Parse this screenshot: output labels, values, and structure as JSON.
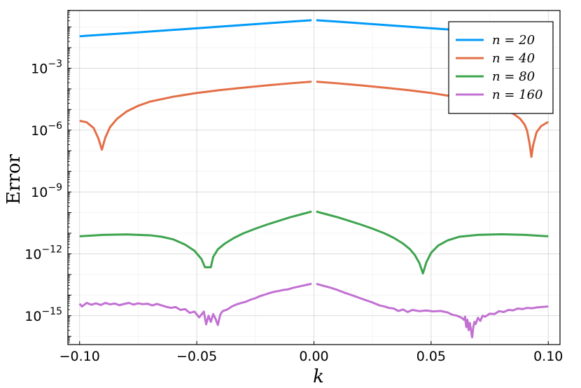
{
  "chart_data": {
    "type": "line",
    "xlabel": "k",
    "ylabel": "Error",
    "xlim": [
      -0.105,
      0.105
    ],
    "ylim_log10": [
      -16.4,
      -0.2
    ],
    "y_scale": "log10",
    "grid": true,
    "legend_position": "top-right",
    "x_ticks": [
      {
        "v": -0.1,
        "label": "−0.10"
      },
      {
        "v": -0.05,
        "label": "−0.05"
      },
      {
        "v": 0.0,
        "label": "0.00"
      },
      {
        "v": 0.05,
        "label": "0.05"
      },
      {
        "v": 0.1,
        "label": "0.10"
      }
    ],
    "y_ticks": [
      {
        "v": -3,
        "base": "10",
        "exp": "−3"
      },
      {
        "v": -6,
        "base": "10",
        "exp": "−6"
      },
      {
        "v": -9,
        "base": "10",
        "exp": "−9"
      },
      {
        "v": -12,
        "base": "10",
        "exp": "−12"
      },
      {
        "v": -15,
        "base": "10",
        "exp": "−15"
      }
    ],
    "series": [
      {
        "name": "n = 20",
        "color": "#009AFA",
        "log10_points": [
          [
            -0.1,
            -1.45
          ],
          [
            -0.09,
            -1.37
          ],
          [
            -0.08,
            -1.3
          ],
          [
            -0.07,
            -1.22
          ],
          [
            -0.06,
            -1.14
          ],
          [
            -0.05,
            -1.06
          ],
          [
            -0.04,
            -0.98
          ],
          [
            -0.03,
            -0.9
          ],
          [
            -0.02,
            -0.82
          ],
          [
            -0.01,
            -0.74
          ],
          [
            -0.001,
            -0.67
          ],
          [
            0.001,
            -0.67
          ],
          [
            0.01,
            -0.74
          ],
          [
            0.02,
            -0.82
          ],
          [
            0.03,
            -0.9
          ],
          [
            0.04,
            -0.98
          ],
          [
            0.05,
            -1.06
          ],
          [
            0.06,
            -1.14
          ],
          [
            0.07,
            -1.22
          ],
          [
            0.08,
            -1.3
          ],
          [
            0.09,
            -1.37
          ],
          [
            0.1,
            -1.45
          ]
        ]
      },
      {
        "name": "n = 40",
        "color": "#E36F47",
        "log10_points": [
          [
            -0.1,
            -5.55
          ],
          [
            -0.097,
            -5.62
          ],
          [
            -0.094,
            -5.9
          ],
          [
            -0.092,
            -6.4
          ],
          [
            -0.0905,
            -6.95
          ],
          [
            -0.089,
            -6.35
          ],
          [
            -0.087,
            -5.85
          ],
          [
            -0.084,
            -5.45
          ],
          [
            -0.08,
            -5.1
          ],
          [
            -0.075,
            -4.82
          ],
          [
            -0.07,
            -4.62
          ],
          [
            -0.06,
            -4.38
          ],
          [
            -0.05,
            -4.2
          ],
          [
            -0.04,
            -4.06
          ],
          [
            -0.03,
            -3.94
          ],
          [
            -0.02,
            -3.83
          ],
          [
            -0.01,
            -3.73
          ],
          [
            -0.001,
            -3.65
          ],
          [
            0.001,
            -3.65
          ],
          [
            0.01,
            -3.73
          ],
          [
            0.02,
            -3.83
          ],
          [
            0.03,
            -3.94
          ],
          [
            0.04,
            -4.06
          ],
          [
            0.05,
            -4.2
          ],
          [
            0.06,
            -4.38
          ],
          [
            0.07,
            -4.62
          ],
          [
            0.08,
            -4.95
          ],
          [
            0.085,
            -5.2
          ],
          [
            0.088,
            -5.45
          ],
          [
            0.09,
            -5.75
          ],
          [
            0.091,
            -6.05
          ],
          [
            0.092,
            -6.65
          ],
          [
            0.0928,
            -7.3
          ],
          [
            0.0935,
            -6.75
          ],
          [
            0.095,
            -6.1
          ],
          [
            0.097,
            -5.8
          ],
          [
            0.1,
            -5.6
          ]
        ]
      },
      {
        "name": "n = 80",
        "color": "#3EA44E",
        "log10_points": [
          [
            -0.1,
            -11.15
          ],
          [
            -0.09,
            -11.08
          ],
          [
            -0.08,
            -11.06
          ],
          [
            -0.07,
            -11.1
          ],
          [
            -0.065,
            -11.17
          ],
          [
            -0.06,
            -11.3
          ],
          [
            -0.055,
            -11.55
          ],
          [
            -0.051,
            -11.85
          ],
          [
            -0.048,
            -12.25
          ],
          [
            -0.0465,
            -12.65
          ],
          [
            -0.044,
            -12.65
          ],
          [
            -0.043,
            -12.15
          ],
          [
            -0.041,
            -11.78
          ],
          [
            -0.038,
            -11.5
          ],
          [
            -0.034,
            -11.22
          ],
          [
            -0.03,
            -11.0
          ],
          [
            -0.025,
            -10.78
          ],
          [
            -0.02,
            -10.58
          ],
          [
            -0.015,
            -10.4
          ],
          [
            -0.01,
            -10.22
          ],
          [
            -0.005,
            -10.07
          ],
          [
            -0.001,
            -9.95
          ],
          [
            0.001,
            -9.95
          ],
          [
            0.005,
            -10.07
          ],
          [
            0.01,
            -10.22
          ],
          [
            0.015,
            -10.4
          ],
          [
            0.02,
            -10.58
          ],
          [
            0.025,
            -10.78
          ],
          [
            0.03,
            -11.0
          ],
          [
            0.034,
            -11.22
          ],
          [
            0.038,
            -11.5
          ],
          [
            0.041,
            -11.78
          ],
          [
            0.043,
            -12.05
          ],
          [
            0.045,
            -12.45
          ],
          [
            0.0465,
            -12.95
          ],
          [
            0.048,
            -12.4
          ],
          [
            0.05,
            -11.95
          ],
          [
            0.053,
            -11.6
          ],
          [
            0.057,
            -11.35
          ],
          [
            0.062,
            -11.17
          ],
          [
            0.07,
            -11.08
          ],
          [
            0.08,
            -11.05
          ],
          [
            0.09,
            -11.08
          ],
          [
            0.1,
            -11.15
          ]
        ]
      },
      {
        "name": "n = 160",
        "color": "#C271D2",
        "log10_points": [
          [
            -0.1,
            -14.42
          ],
          [
            -0.099,
            -14.55
          ],
          [
            -0.097,
            -14.38
          ],
          [
            -0.095,
            -14.47
          ],
          [
            -0.093,
            -14.4
          ],
          [
            -0.091,
            -14.48
          ],
          [
            -0.089,
            -14.38
          ],
          [
            -0.087,
            -14.45
          ],
          [
            -0.085,
            -14.41
          ],
          [
            -0.083,
            -14.49
          ],
          [
            -0.081,
            -14.43
          ],
          [
            -0.079,
            -14.38
          ],
          [
            -0.077,
            -14.46
          ],
          [
            -0.075,
            -14.4
          ],
          [
            -0.073,
            -14.44
          ],
          [
            -0.071,
            -14.42
          ],
          [
            -0.069,
            -14.5
          ],
          [
            -0.067,
            -14.43
          ],
          [
            -0.065,
            -14.5
          ],
          [
            -0.063,
            -14.57
          ],
          [
            -0.061,
            -14.62
          ],
          [
            -0.059,
            -14.58
          ],
          [
            -0.057,
            -14.72
          ],
          [
            -0.055,
            -14.68
          ],
          [
            -0.053,
            -14.86
          ],
          [
            -0.051,
            -14.8
          ],
          [
            -0.049,
            -15.08
          ],
          [
            -0.047,
            -14.8
          ],
          [
            -0.046,
            -15.42
          ],
          [
            -0.045,
            -15.0
          ],
          [
            -0.044,
            -15.3
          ],
          [
            -0.043,
            -14.92
          ],
          [
            -0.042,
            -15.15
          ],
          [
            -0.041,
            -15.45
          ],
          [
            -0.04,
            -14.95
          ],
          [
            -0.039,
            -14.78
          ],
          [
            -0.037,
            -14.7
          ],
          [
            -0.035,
            -14.55
          ],
          [
            -0.033,
            -14.45
          ],
          [
            -0.031,
            -14.38
          ],
          [
            -0.029,
            -14.32
          ],
          [
            -0.027,
            -14.22
          ],
          [
            -0.025,
            -14.15
          ],
          [
            -0.023,
            -14.05
          ],
          [
            -0.021,
            -13.98
          ],
          [
            -0.019,
            -13.9
          ],
          [
            -0.017,
            -13.84
          ],
          [
            -0.015,
            -13.8
          ],
          [
            -0.013,
            -13.75
          ],
          [
            -0.011,
            -13.72
          ],
          [
            -0.009,
            -13.65
          ],
          [
            -0.007,
            -13.6
          ],
          [
            -0.005,
            -13.55
          ],
          [
            -0.003,
            -13.5
          ],
          [
            -0.001,
            -13.45
          ],
          [
            0.001,
            -13.45
          ],
          [
            0.004,
            -13.55
          ],
          [
            0.007,
            -13.64
          ],
          [
            0.01,
            -13.75
          ],
          [
            0.013,
            -13.88
          ],
          [
            0.016,
            -14.0
          ],
          [
            0.019,
            -14.12
          ],
          [
            0.022,
            -14.24
          ],
          [
            0.025,
            -14.36
          ],
          [
            0.028,
            -14.5
          ],
          [
            0.03,
            -14.55
          ],
          [
            0.032,
            -14.62
          ],
          [
            0.034,
            -14.65
          ],
          [
            0.036,
            -14.77
          ],
          [
            0.038,
            -14.7
          ],
          [
            0.04,
            -14.82
          ],
          [
            0.042,
            -14.72
          ],
          [
            0.045,
            -14.78
          ],
          [
            0.048,
            -14.75
          ],
          [
            0.051,
            -14.79
          ],
          [
            0.054,
            -14.77
          ],
          [
            0.057,
            -14.84
          ],
          [
            0.059,
            -14.95
          ],
          [
            0.061,
            -15.0
          ],
          [
            0.063,
            -15.1
          ],
          [
            0.064,
            -15.2
          ],
          [
            0.0645,
            -15.05
          ],
          [
            0.065,
            -15.55
          ],
          [
            0.0655,
            -15.2
          ],
          [
            0.066,
            -15.7
          ],
          [
            0.0665,
            -15.35
          ],
          [
            0.067,
            -15.7
          ],
          [
            0.0675,
            -16.05
          ],
          [
            0.068,
            -15.55
          ],
          [
            0.0685,
            -15.3
          ],
          [
            0.069,
            -15.4
          ],
          [
            0.07,
            -15.1
          ],
          [
            0.071,
            -15.25
          ],
          [
            0.072,
            -15.0
          ],
          [
            0.073,
            -15.05
          ],
          [
            0.075,
            -14.9
          ],
          [
            0.077,
            -14.92
          ],
          [
            0.079,
            -14.78
          ],
          [
            0.081,
            -14.82
          ],
          [
            0.083,
            -14.72
          ],
          [
            0.085,
            -14.74
          ],
          [
            0.087,
            -14.65
          ],
          [
            0.089,
            -14.68
          ],
          [
            0.091,
            -14.62
          ],
          [
            0.093,
            -14.64
          ],
          [
            0.095,
            -14.6
          ],
          [
            0.097,
            -14.58
          ],
          [
            0.099,
            -14.56
          ],
          [
            0.1,
            -14.55
          ]
        ]
      }
    ]
  }
}
